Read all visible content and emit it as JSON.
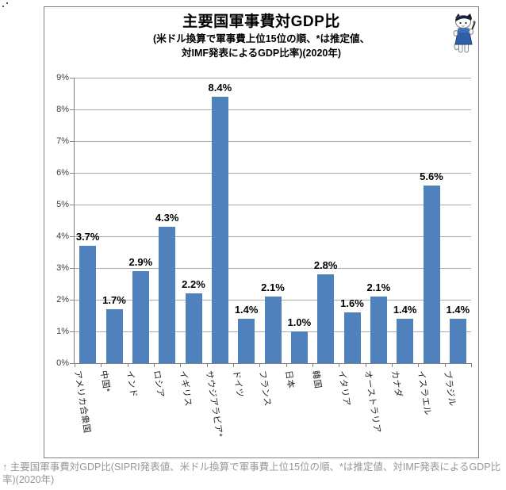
{
  "header": {
    "title": "主要国軍事費対GDP比",
    "subtitle_line1": "(米ドル換算で軍事費上位15位の順、*は推定値、",
    "subtitle_line2": "対IMF発表によるGDP比率)(2020年)"
  },
  "icons": {
    "mascot": "cat-mascot-icon"
  },
  "chart_data": {
    "type": "bar",
    "title": "主要国軍事費対GDP比",
    "categories": [
      "アメリカ合衆国",
      "中国*",
      "インド",
      "ロシア",
      "イギリス",
      "サウジアラビア*",
      "ドイツ",
      "フランス",
      "日本",
      "韓国",
      "イタリア",
      "オーストラリア",
      "カナダ",
      "イスラエル",
      "ブラジル"
    ],
    "values": [
      3.7,
      1.7,
      2.9,
      4.3,
      2.2,
      8.4,
      1.4,
      2.1,
      1.0,
      2.8,
      1.6,
      2.1,
      1.4,
      5.6,
      1.4
    ],
    "value_labels": [
      "3.7%",
      "1.7%",
      "2.9%",
      "4.3%",
      "2.2%",
      "8.4%",
      "1.4%",
      "2.1%",
      "1.0%",
      "2.8%",
      "1.6%",
      "2.1%",
      "1.4%",
      "5.6%",
      "1.4%"
    ],
    "xlabel": "",
    "ylabel": "",
    "ylim": [
      0,
      9
    ],
    "ytick_labels": [
      "0%",
      "1%",
      "2%",
      "3%",
      "4%",
      "5%",
      "6%",
      "7%",
      "8%",
      "9%"
    ],
    "grid": true,
    "legend": false
  },
  "colors": {
    "bar": "#4F81BD",
    "gridline": "#ABABAB",
    "axis": "#808080",
    "frame_border": "#808080",
    "value_label": "#000000",
    "tick_label": "#404040",
    "caption": "#979797"
  },
  "footer": {
    "caption": "↑ 主要国軍事費対GDP比(SIPRI発表値、米ドル換算で軍事費上位15位の順、*は推定値、対IMF発表によるGDP比率)(2020年)"
  }
}
